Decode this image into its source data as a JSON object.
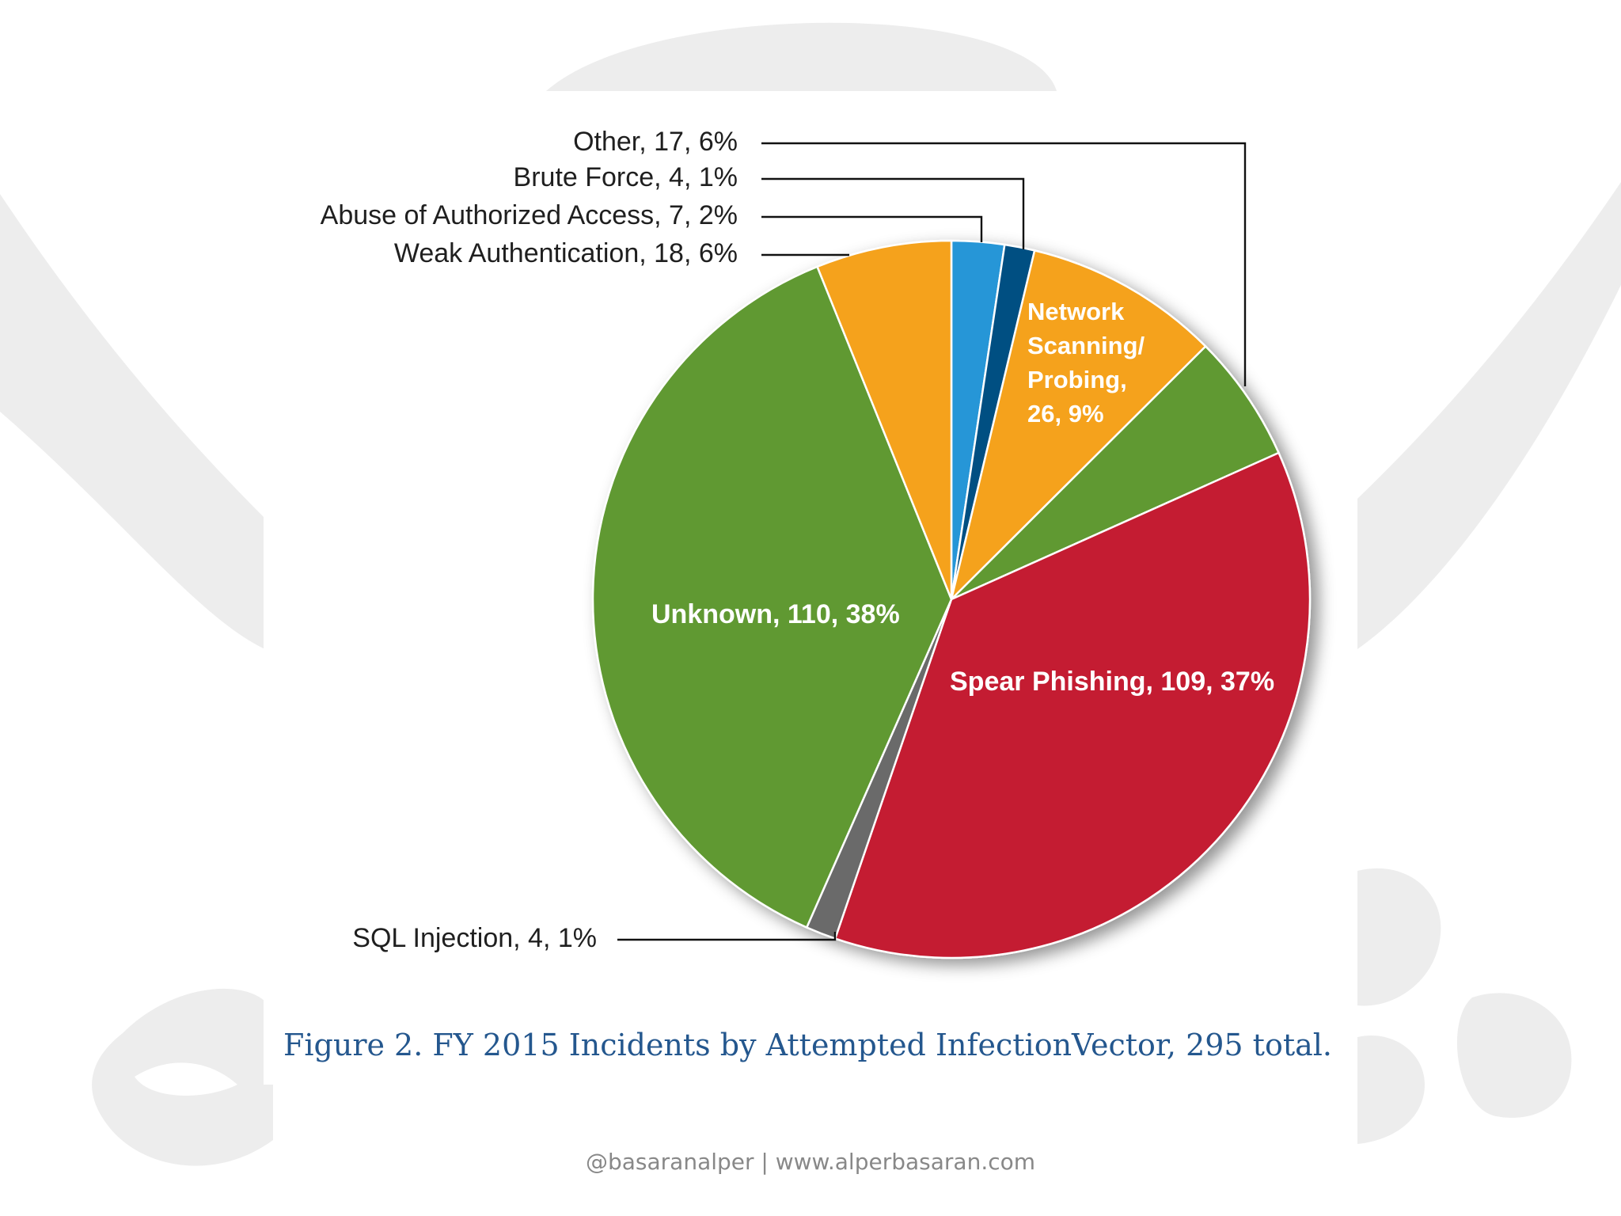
{
  "slide": {
    "caption": "Figure 2. FY 2015 Incidents by Attempted InfectionVector, 295 total.",
    "footer": "@basaranalper | www.alperbasaran.com"
  },
  "colors": {
    "blue": "#2596d7",
    "navy": "#064f82",
    "orange": "#f5a21f",
    "green": "#609933",
    "red": "#c41c32",
    "gray": "#6b6b6b",
    "watermark": "#ededed",
    "caption": "#24578e"
  },
  "chart_data": {
    "type": "pie",
    "title": "Figure 2. FY 2015 Incidents by Attempted InfectionVector, 295 total.",
    "total": 295,
    "legend": "none",
    "slices": [
      {
        "id": "abuse",
        "label": "Abuse of Authorized Access",
        "value": 7,
        "percent": 2,
        "display": "Abuse of Authorized Access, 7, 2%",
        "color": "#2596d7",
        "label_mode": "callout"
      },
      {
        "id": "brute",
        "label": "Brute Force",
        "value": 4,
        "percent": 1,
        "display": "Brute Force, 4, 1%",
        "color": "#064f82",
        "label_mode": "callout"
      },
      {
        "id": "network",
        "label": "Network Scanning/ Probing",
        "value": 26,
        "percent": 9,
        "display_lines": [
          "Network",
          "Scanning/",
          "Probing,",
          "26, 9%"
        ],
        "color": "#f5a21f",
        "label_mode": "inside"
      },
      {
        "id": "other",
        "label": "Other",
        "value": 17,
        "percent": 6,
        "display": "Other, 17, 6%",
        "color": "#609933",
        "label_mode": "callout"
      },
      {
        "id": "spear",
        "label": "Spear Phishing",
        "value": 109,
        "percent": 37,
        "display": "Spear Phishing, 109, 37%",
        "color": "#c41c32",
        "label_mode": "inside"
      },
      {
        "id": "sql",
        "label": "SQL Injection",
        "value": 4,
        "percent": 1,
        "display": "SQL Injection, 4, 1%",
        "color": "#6b6b6b",
        "label_mode": "callout"
      },
      {
        "id": "unknown",
        "label": "Unknown",
        "value": 110,
        "percent": 38,
        "display": "Unknown, 110, 38%",
        "color": "#609933",
        "label_mode": "inside"
      },
      {
        "id": "weak",
        "label": "Weak Authentication",
        "value": 18,
        "percent": 6,
        "display": "Weak Authentication, 18, 6%",
        "color": "#f5a21f",
        "label_mode": "callout"
      }
    ]
  }
}
